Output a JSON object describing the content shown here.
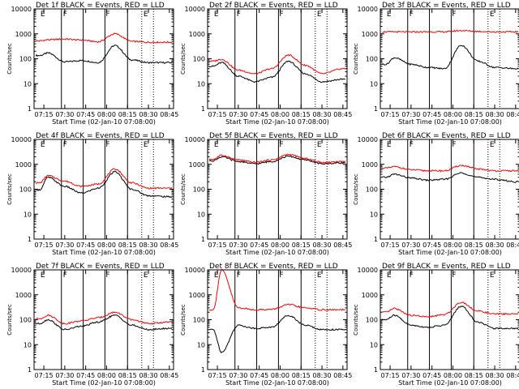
{
  "colors": {
    "events": "#000000",
    "lld": "#ff0000",
    "background": "#ffffff"
  },
  "chart_data": [
    {
      "type": "line",
      "title": "Det 1f BLACK = Events, RED = LLD",
      "xlabel": "Start Time (02-Jan-10 07:08:00)",
      "ylabel": "Counts/sec",
      "yscale": "log",
      "ylim": [
        1,
        10000
      ],
      "xticks": [
        "07:15",
        "07:30",
        "07:45",
        "08:00",
        "08:15",
        "08:30",
        "08:45"
      ],
      "yticks": [
        "1",
        "10",
        "100",
        "1000",
        "10000"
      ],
      "x": [
        7.2,
        7.3,
        7.5,
        7.7,
        7.9,
        8.1,
        8.3,
        8.5,
        8.75
      ],
      "series": [
        {
          "name": "Events",
          "values": [
            135,
            170,
            75,
            85,
            70,
            340,
            90,
            70,
            70
          ]
        },
        {
          "name": "LLD",
          "values": [
            520,
            580,
            620,
            560,
            480,
            1000,
            500,
            460,
            460
          ]
        }
      ],
      "markers": [
        {
          "x": 7.2,
          "label": "E"
        },
        {
          "x": 7.47,
          "label": "F"
        },
        {
          "x": 7.98,
          "label": "F"
        },
        {
          "x": 8.43,
          "label": "E"
        }
      ],
      "solid_lines": [
        7.46,
        7.72,
        7.98,
        8.25
      ],
      "dotted_lines": [
        8.42,
        8.56
      ]
    },
    {
      "type": "line",
      "title": "Det 2f BLACK = Events, RED = LLD",
      "xlabel": "Start Time (02-Jan-10 07:08:00)",
      "ylabel": "Counts/sec",
      "yscale": "log",
      "ylim": [
        1,
        10000
      ],
      "xticks": [
        "07:15",
        "07:30",
        "07:45",
        "08:00",
        "08:15",
        "08:30",
        "08:45"
      ],
      "yticks": [
        "1",
        "10",
        "100",
        "1000",
        "10000"
      ],
      "x": [
        7.2,
        7.3,
        7.5,
        7.7,
        7.9,
        8.1,
        8.3,
        8.5,
        8.75
      ],
      "series": [
        {
          "name": "Events",
          "values": [
            50,
            70,
            20,
            12,
            18,
            80,
            25,
            12,
            15
          ]
        },
        {
          "name": "LLD",
          "values": [
            80,
            95,
            35,
            25,
            40,
            140,
            55,
            25,
            40
          ]
        }
      ],
      "markers": [
        {
          "x": 7.2,
          "label": "E"
        },
        {
          "x": 7.47,
          "label": "F"
        },
        {
          "x": 7.98,
          "label": "F"
        },
        {
          "x": 8.43,
          "label": "E"
        }
      ],
      "solid_lines": [
        7.46,
        7.72,
        7.98,
        8.25
      ],
      "dotted_lines": [
        8.42,
        8.56
      ]
    },
    {
      "type": "line",
      "title": "Det 3f BLACK = Events, RED = LLD",
      "xlabel": "Start Time (02-Jan-10 07:08:00)",
      "ylabel": "Counts/sec",
      "yscale": "log",
      "ylim": [
        1,
        10000
      ],
      "xticks": [
        "07:15",
        "07:30",
        "07:45",
        "08:00",
        "08:15",
        "08:30",
        "08:45"
      ],
      "yticks": [
        "1",
        "10",
        "100",
        "1000",
        "10000"
      ],
      "x": [
        7.2,
        7.3,
        7.5,
        7.7,
        7.9,
        8.1,
        8.3,
        8.5,
        8.75
      ],
      "series": [
        {
          "name": "Events",
          "values": [
            60,
            110,
            60,
            45,
            40,
            350,
            80,
            45,
            40
          ]
        },
        {
          "name": "LLD",
          "values": [
            1200,
            1200,
            1180,
            1200,
            1200,
            1350,
            1250,
            1200,
            1200
          ]
        }
      ],
      "markers": [
        {
          "x": 7.2,
          "label": "E"
        },
        {
          "x": 7.47,
          "label": "F"
        },
        {
          "x": 7.98,
          "label": "F"
        },
        {
          "x": 8.43,
          "label": "E"
        }
      ],
      "solid_lines": [
        7.46,
        7.72,
        7.98,
        8.25
      ],
      "dotted_lines": [
        8.42,
        8.56
      ]
    },
    {
      "type": "line",
      "title": "Det 4f BLACK = Events, RED = LLD",
      "xlabel": "Start Time (02-Jan-10 07:08:00)",
      "ylabel": "Counts/sec",
      "yscale": "log",
      "ylim": [
        1,
        10000
      ],
      "xticks": [
        "07:15",
        "07:30",
        "07:45",
        "08:00",
        "08:15",
        "08:30",
        "08:45"
      ],
      "yticks": [
        "1",
        "10",
        "100",
        "1000",
        "10000"
      ],
      "x": [
        7.2,
        7.3,
        7.5,
        7.7,
        7.9,
        8.1,
        8.3,
        8.5,
        8.75
      ],
      "series": [
        {
          "name": "Events",
          "values": [
            95,
            300,
            130,
            70,
            110,
            500,
            100,
            55,
            50
          ]
        },
        {
          "name": "LLD",
          "values": [
            180,
            350,
            210,
            130,
            160,
            650,
            180,
            110,
            110
          ]
        }
      ],
      "markers": [
        {
          "x": 7.2,
          "label": "E"
        },
        {
          "x": 7.47,
          "label": "F"
        },
        {
          "x": 7.98,
          "label": "F"
        },
        {
          "x": 8.43,
          "label": "E"
        }
      ],
      "solid_lines": [
        7.46,
        7.72,
        7.98,
        8.25
      ],
      "dotted_lines": [
        8.42,
        8.56
      ]
    },
    {
      "type": "line",
      "title": "Det 5f BLACK = Events, RED = LLD",
      "xlabel": "Start Time (02-Jan-10 07:08:00)",
      "ylabel": "Counts/sec",
      "yscale": "log",
      "ylim": [
        1,
        10000
      ],
      "xticks": [
        "07:15",
        "07:30",
        "07:45",
        "08:00",
        "08:15",
        "08:30",
        "08:45"
      ],
      "yticks": [
        "1",
        "10",
        "100",
        "1000",
        "10000"
      ],
      "x": [
        7.2,
        7.3,
        7.5,
        7.7,
        7.9,
        8.1,
        8.3,
        8.5,
        8.75
      ],
      "series": [
        {
          "name": "Events",
          "values": [
            1400,
            2000,
            1300,
            1050,
            1300,
            2100,
            1500,
            1050,
            1150
          ]
        },
        {
          "name": "LLD",
          "values": [
            1600,
            2300,
            1500,
            1200,
            1500,
            2500,
            1700,
            1200,
            1300
          ]
        }
      ],
      "markers": [
        {
          "x": 7.2,
          "label": "E"
        },
        {
          "x": 7.47,
          "label": "F"
        },
        {
          "x": 7.98,
          "label": "F"
        },
        {
          "x": 8.43,
          "label": "E"
        }
      ],
      "solid_lines": [
        7.46,
        7.72,
        7.98,
        8.25
      ],
      "dotted_lines": [
        8.42,
        8.56
      ]
    },
    {
      "type": "line",
      "title": "Det 6f BLACK = Events, RED = LLD",
      "xlabel": "Start Time (02-Jan-10 07:08:00)",
      "ylabel": "Counts/sec",
      "yscale": "log",
      "ylim": [
        1,
        10000
      ],
      "xticks": [
        "07:15",
        "07:30",
        "07:45",
        "08:00",
        "08:15",
        "08:30",
        "08:45"
      ],
      "yticks": [
        "1",
        "10",
        "100",
        "1000",
        "10000"
      ],
      "x": [
        7.2,
        7.3,
        7.5,
        7.7,
        7.9,
        8.1,
        8.3,
        8.5,
        8.75
      ],
      "series": [
        {
          "name": "Events",
          "values": [
            300,
            400,
            280,
            230,
            250,
            450,
            300,
            250,
            200
          ]
        },
        {
          "name": "LLD",
          "values": [
            700,
            800,
            600,
            550,
            550,
            900,
            650,
            550,
            550
          ]
        }
      ],
      "markers": [
        {
          "x": 7.2,
          "label": "E"
        },
        {
          "x": 7.47,
          "label": "F"
        },
        {
          "x": 7.98,
          "label": "F"
        },
        {
          "x": 8.43,
          "label": "E"
        }
      ],
      "solid_lines": [
        7.46,
        7.72,
        7.98,
        8.25
      ],
      "dotted_lines": [
        8.42,
        8.56
      ]
    },
    {
      "type": "line",
      "title": "Det 7f BLACK = Events, RED = LLD",
      "xlabel": "Start Time (02-Jan-10 07:08:00)",
      "ylabel": "Counts/sec",
      "yscale": "log",
      "ylim": [
        1,
        10000
      ],
      "xticks": [
        "07:15",
        "07:30",
        "07:45",
        "08:00",
        "08:15",
        "08:30",
        "08:45"
      ],
      "yticks": [
        "1",
        "10",
        "100",
        "1000",
        "10000"
      ],
      "x": [
        7.2,
        7.3,
        7.5,
        7.7,
        7.9,
        8.1,
        8.3,
        8.5,
        8.75
      ],
      "series": [
        {
          "name": "Events",
          "values": [
            70,
            100,
            40,
            55,
            80,
            150,
            60,
            40,
            45
          ]
        },
        {
          "name": "LLD",
          "values": [
            110,
            150,
            70,
            90,
            120,
            200,
            100,
            70,
            80
          ]
        }
      ],
      "markers": [
        {
          "x": 7.2,
          "label": "E"
        },
        {
          "x": 7.47,
          "label": "F"
        },
        {
          "x": 7.98,
          "label": "F"
        },
        {
          "x": 8.43,
          "label": "E"
        }
      ],
      "solid_lines": [
        7.46,
        7.72,
        7.98,
        8.25
      ],
      "dotted_lines": [
        8.42,
        8.56
      ]
    },
    {
      "type": "line",
      "title": "Det 8f BLACK = Events, RED = LLD",
      "xlabel": "Start Time (02-Jan-10 07:08:00)",
      "ylabel": "Counts/sec",
      "yscale": "log",
      "ylim": [
        1,
        10000
      ],
      "xticks": [
        "07:15",
        "07:30",
        "07:45",
        "08:00",
        "08:15",
        "08:30",
        "08:45"
      ],
      "yticks": [
        "1",
        "10",
        "100",
        "1000",
        "10000"
      ],
      "x": [
        7.2,
        7.3,
        7.5,
        7.7,
        7.9,
        8.1,
        8.3,
        8.5,
        8.75
      ],
      "series": [
        {
          "name": "Events",
          "values": [
            40,
            5,
            60,
            45,
            50,
            150,
            60,
            40,
            40
          ]
        },
        {
          "name": "LLD",
          "values": [
            250,
            10000,
            300,
            250,
            260,
            400,
            300,
            250,
            250
          ]
        }
      ],
      "markers": [
        {
          "x": 7.2,
          "label": "E"
        },
        {
          "x": 7.47,
          "label": "F"
        },
        {
          "x": 7.98,
          "label": "F"
        },
        {
          "x": 8.43,
          "label": "E"
        }
      ],
      "solid_lines": [
        7.46,
        7.72,
        7.98,
        8.25
      ],
      "dotted_lines": [
        8.42,
        8.56
      ]
    },
    {
      "type": "line",
      "title": "Det 9f BLACK = Events, RED = LLD",
      "xlabel": "Start Time (02-Jan-10 07:08:00)",
      "ylabel": "Counts/sec",
      "yscale": "log",
      "ylim": [
        1,
        10000
      ],
      "xticks": [
        "07:15",
        "07:30",
        "07:45",
        "08:00",
        "08:15",
        "08:30",
        "08:45"
      ],
      "yticks": [
        "1",
        "10",
        "100",
        "1000",
        "10000"
      ],
      "x": [
        7.2,
        7.3,
        7.5,
        7.7,
        7.9,
        8.1,
        8.3,
        8.5,
        8.75
      ],
      "series": [
        {
          "name": "Events",
          "values": [
            100,
            150,
            60,
            50,
            60,
            350,
            80,
            45,
            45
          ]
        },
        {
          "name": "LLD",
          "values": [
            200,
            280,
            150,
            130,
            160,
            500,
            220,
            170,
            170
          ]
        }
      ],
      "markers": [
        {
          "x": 7.2,
          "label": "E"
        },
        {
          "x": 7.47,
          "label": "F"
        },
        {
          "x": 7.98,
          "label": "F"
        },
        {
          "x": 8.43,
          "label": "E"
        }
      ],
      "solid_lines": [
        7.46,
        7.72,
        7.98,
        8.25
      ],
      "dotted_lines": [
        8.42,
        8.56
      ]
    }
  ]
}
